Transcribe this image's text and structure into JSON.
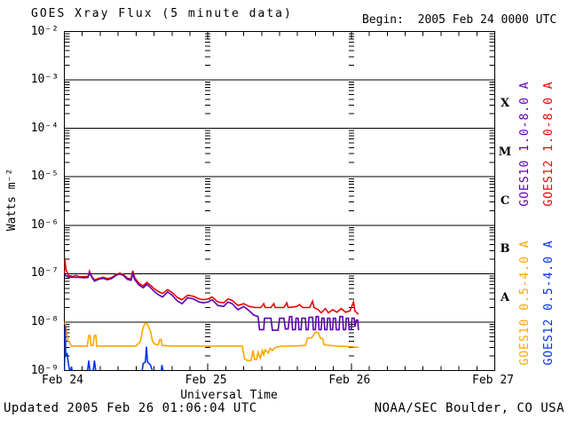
{
  "title": "GOES Xray Flux (5 minute data)",
  "begin_label": "Begin:  2005 Feb 24 0000 UTC",
  "footer": {
    "updated": "Updated 2005 Feb 26 01:06:04 UTC",
    "source": "NOAA/SEC Boulder, CO USA"
  },
  "axes": {
    "ylabel": "Watts m⁻²",
    "xlabel": "Universal Time",
    "y_tick_labels": [
      "10⁻²",
      "10⁻³",
      "10⁻⁴",
      "10⁻⁵",
      "10⁻⁶",
      "10⁻⁷",
      "10⁻⁸",
      "10⁻⁹"
    ],
    "x_tick_labels": [
      "Feb 24",
      "Feb 25",
      "Feb 26",
      "Feb 27"
    ],
    "flux_class_labels": [
      "X",
      "M",
      "C",
      "B",
      "A"
    ]
  },
  "legend": [
    {
      "label": "GOES10 1.0-8.0 A",
      "color": "#5B00B0"
    },
    {
      "label": "GOES12 1.0-8.0 A",
      "color": "#EC0000"
    },
    {
      "label": "GOES10 0.5-4.0 A",
      "color": "#FFA500"
    },
    {
      "label": "GOES12 0.5-4.0 A",
      "color": "#0033EE"
    }
  ],
  "chart_data": {
    "type": "line",
    "title": "GOES Xray Flux (5 minute data)",
    "x_unit": "days since 2005 Feb 24 0000 UTC",
    "y_unit": "Watts m^-2",
    "yscale": "log",
    "xlim": [
      0,
      3
    ],
    "ylim": [
      1e-09,
      0.01
    ],
    "x_major_tick_days": 1,
    "x_minor_tick_days": 0.125,
    "grid": "solid horizontal line per decade; dotted vertical columns at day boundaries",
    "series": [
      {
        "name": "GOES12 1.0-8.0 A",
        "color": "#EC0000",
        "points": [
          [
            0.0,
            1e-07
          ],
          [
            0.003,
            2.1e-07
          ],
          [
            0.012,
            1.2e-07
          ],
          [
            0.03,
            9.2e-08
          ],
          [
            0.06,
            8.8e-08
          ],
          [
            0.08,
            9.2e-08
          ],
          [
            0.11,
            8.6e-08
          ],
          [
            0.14,
            8.7e-08
          ],
          [
            0.165,
            8.8e-08
          ],
          [
            0.175,
            1.13e-07
          ],
          [
            0.19,
            9e-08
          ],
          [
            0.21,
            7.4e-08
          ],
          [
            0.24,
            8e-08
          ],
          [
            0.27,
            8.4e-08
          ],
          [
            0.3,
            7.9e-08
          ],
          [
            0.33,
            8.3e-08
          ],
          [
            0.36,
            9.6e-08
          ],
          [
            0.385,
            1.02e-07
          ],
          [
            0.41,
            9.7e-08
          ],
          [
            0.44,
            8e-08
          ],
          [
            0.465,
            7.8e-08
          ],
          [
            0.477,
            1.15e-07
          ],
          [
            0.49,
            8.3e-08
          ],
          [
            0.52,
            6.3e-08
          ],
          [
            0.55,
            5.6e-08
          ],
          [
            0.575,
            6.6e-08
          ],
          [
            0.6,
            5.8e-08
          ],
          [
            0.63,
            4.8e-08
          ],
          [
            0.66,
            4.2e-08
          ],
          [
            0.685,
            3.9e-08
          ],
          [
            0.72,
            4.7e-08
          ],
          [
            0.75,
            4.1e-08
          ],
          [
            0.79,
            3.2e-08
          ],
          [
            0.82,
            2.9e-08
          ],
          [
            0.86,
            3.6e-08
          ],
          [
            0.9,
            3.4e-08
          ],
          [
            0.94,
            3e-08
          ],
          [
            0.97,
            2.9e-08
          ],
          [
            1.0,
            3e-08
          ],
          [
            1.03,
            3.3e-08
          ],
          [
            1.07,
            2.6e-08
          ],
          [
            1.11,
            2.5e-08
          ],
          [
            1.14,
            3e-08
          ],
          [
            1.17,
            2.8e-08
          ],
          [
            1.21,
            2.2e-08
          ],
          [
            1.25,
            2.4e-08
          ],
          [
            1.29,
            2.1e-08
          ],
          [
            1.33,
            2e-08
          ],
          [
            1.37,
            2e-08
          ],
          [
            1.39,
            2.4e-08
          ],
          [
            1.4,
            2e-08
          ],
          [
            1.44,
            2e-08
          ],
          [
            1.46,
            2.4e-08
          ],
          [
            1.47,
            2e-08
          ],
          [
            1.53,
            2e-08
          ],
          [
            1.55,
            2.5e-08
          ],
          [
            1.56,
            2e-08
          ],
          [
            1.62,
            2.1e-08
          ],
          [
            1.64,
            2.3e-08
          ],
          [
            1.66,
            2e-08
          ],
          [
            1.71,
            2e-08
          ],
          [
            1.73,
            2.7e-08
          ],
          [
            1.74,
            2e-08
          ],
          [
            1.77,
            1.8e-08
          ],
          [
            1.79,
            1.55e-08
          ],
          [
            1.82,
            1.9e-08
          ],
          [
            1.84,
            1.55e-08
          ],
          [
            1.87,
            1.8e-08
          ],
          [
            1.9,
            1.6e-08
          ],
          [
            1.93,
            1.9e-08
          ],
          [
            1.96,
            1.6e-08
          ],
          [
            1.99,
            1.7e-08
          ],
          [
            2.015,
            2.6e-08
          ],
          [
            2.025,
            1.7e-08
          ],
          [
            2.05,
            1.45e-08
          ]
        ]
      },
      {
        "name": "GOES10 1.0-8.0 A",
        "color": "#5B00B0",
        "points": [
          [
            0.0,
            9.6e-08
          ],
          [
            0.03,
            8.5e-08
          ],
          [
            0.06,
            8.4e-08
          ],
          [
            0.1,
            8.4e-08
          ],
          [
            0.14,
            8.2e-08
          ],
          [
            0.165,
            8.4e-08
          ],
          [
            0.175,
            1.05e-07
          ],
          [
            0.19,
            8.6e-08
          ],
          [
            0.21,
            7e-08
          ],
          [
            0.24,
            7.7e-08
          ],
          [
            0.27,
            8e-08
          ],
          [
            0.3,
            7.5e-08
          ],
          [
            0.33,
            7.9e-08
          ],
          [
            0.36,
            9.2e-08
          ],
          [
            0.385,
            9.8e-08
          ],
          [
            0.41,
            9.3e-08
          ],
          [
            0.44,
            7.6e-08
          ],
          [
            0.465,
            7.3e-08
          ],
          [
            0.477,
            1e-07
          ],
          [
            0.49,
            7.6e-08
          ],
          [
            0.52,
            5.8e-08
          ],
          [
            0.55,
            5.1e-08
          ],
          [
            0.575,
            6e-08
          ],
          [
            0.6,
            5.2e-08
          ],
          [
            0.63,
            4.2e-08
          ],
          [
            0.66,
            3.6e-08
          ],
          [
            0.685,
            3.3e-08
          ],
          [
            0.72,
            4.2e-08
          ],
          [
            0.75,
            3.6e-08
          ],
          [
            0.79,
            2.7e-08
          ],
          [
            0.82,
            2.4e-08
          ],
          [
            0.86,
            3.2e-08
          ],
          [
            0.9,
            3e-08
          ],
          [
            0.94,
            2.6e-08
          ],
          [
            0.97,
            2.5e-08
          ],
          [
            1.0,
            2.6e-08
          ],
          [
            1.03,
            2.9e-08
          ],
          [
            1.07,
            2.2e-08
          ],
          [
            1.11,
            2.1e-08
          ],
          [
            1.14,
            2.6e-08
          ],
          [
            1.17,
            2.4e-08
          ],
          [
            1.21,
            1.8e-08
          ],
          [
            1.25,
            2.1e-08
          ],
          [
            1.29,
            1.7e-08
          ],
          [
            1.32,
            1.4e-08
          ],
          [
            1.35,
            1.3e-08
          ],
          [
            1.36,
            7e-09
          ],
          [
            1.39,
            7e-09
          ],
          [
            1.395,
            1.2e-08
          ],
          [
            1.44,
            1.2e-08
          ],
          [
            1.45,
            6.8e-09
          ],
          [
            1.49,
            6.8e-09
          ],
          [
            1.5,
            1.2e-08
          ],
          [
            1.53,
            1.2e-08
          ],
          [
            1.54,
            7.2e-09
          ],
          [
            1.56,
            7.2e-09
          ],
          [
            1.57,
            1.3e-08
          ],
          [
            1.585,
            1.3e-08
          ],
          [
            1.59,
            7e-09
          ],
          [
            1.61,
            7e-09
          ],
          [
            1.615,
            1.2e-08
          ],
          [
            1.63,
            1.2e-08
          ],
          [
            1.635,
            7e-09
          ],
          [
            1.65,
            7e-09
          ],
          [
            1.655,
            1.2e-08
          ],
          [
            1.68,
            1.2e-08
          ],
          [
            1.685,
            7e-09
          ],
          [
            1.7,
            7e-09
          ],
          [
            1.705,
            1.25e-08
          ],
          [
            1.73,
            1.25e-08
          ],
          [
            1.735,
            7e-09
          ],
          [
            1.75,
            7e-09
          ],
          [
            1.755,
            1.3e-08
          ],
          [
            1.77,
            1.3e-08
          ],
          [
            1.775,
            7e-09
          ],
          [
            1.79,
            7e-09
          ],
          [
            1.795,
            1.2e-08
          ],
          [
            1.81,
            1.2e-08
          ],
          [
            1.815,
            7e-09
          ],
          [
            1.83,
            7e-09
          ],
          [
            1.835,
            1.2e-08
          ],
          [
            1.85,
            1.2e-08
          ],
          [
            1.855,
            7e-09
          ],
          [
            1.87,
            7e-09
          ],
          [
            1.875,
            1.2e-08
          ],
          [
            1.89,
            1.2e-08
          ],
          [
            1.895,
            7e-09
          ],
          [
            1.915,
            7e-09
          ],
          [
            1.92,
            1.3e-08
          ],
          [
            1.94,
            1.3e-08
          ],
          [
            1.945,
            7e-09
          ],
          [
            1.96,
            7e-09
          ],
          [
            1.965,
            1.2e-08
          ],
          [
            1.98,
            1.2e-08
          ],
          [
            1.985,
            7e-09
          ],
          [
            2.0,
            7e-09
          ],
          [
            2.005,
            1.2e-08
          ],
          [
            2.02,
            1.2e-08
          ],
          [
            2.025,
            8e-09
          ],
          [
            2.035,
            1.1e-08
          ],
          [
            2.045,
            1.1e-08
          ],
          [
            2.05,
            6.8e-09
          ]
        ]
      },
      {
        "name": "GOES10 0.5-4.0 A",
        "color": "#FFA500",
        "points": [
          [
            0.0,
            1.02e-08
          ],
          [
            0.01,
            8.5e-09
          ],
          [
            0.025,
            4.2e-09
          ],
          [
            0.05,
            3.2e-09
          ],
          [
            0.1,
            3.2e-09
          ],
          [
            0.16,
            3.2e-09
          ],
          [
            0.17,
            5.3e-09
          ],
          [
            0.18,
            5.3e-09
          ],
          [
            0.185,
            3.3e-09
          ],
          [
            0.2,
            3.3e-09
          ],
          [
            0.21,
            5.3e-09
          ],
          [
            0.22,
            5.3e-09
          ],
          [
            0.225,
            3.2e-09
          ],
          [
            0.3,
            3.2e-09
          ],
          [
            0.4,
            3.2e-09
          ],
          [
            0.5,
            3.2e-09
          ],
          [
            0.53,
            4e-09
          ],
          [
            0.55,
            8e-09
          ],
          [
            0.565,
            9.5e-09
          ],
          [
            0.58,
            9e-09
          ],
          [
            0.6,
            6.5e-09
          ],
          [
            0.615,
            4e-09
          ],
          [
            0.63,
            3.5e-09
          ],
          [
            0.655,
            3.4e-09
          ],
          [
            0.665,
            4.4e-09
          ],
          [
            0.675,
            4.4e-09
          ],
          [
            0.68,
            3.3e-09
          ],
          [
            0.75,
            3.2e-09
          ],
          [
            0.85,
            3.2e-09
          ],
          [
            0.95,
            3.2e-09
          ],
          [
            1.05,
            3.2e-09
          ],
          [
            1.15,
            3.2e-09
          ],
          [
            1.24,
            3.2e-09
          ],
          [
            1.255,
            1.75e-09
          ],
          [
            1.28,
            1.6e-09
          ],
          [
            1.3,
            1.6e-09
          ],
          [
            1.315,
            2.6e-09
          ],
          [
            1.325,
            1.7e-09
          ],
          [
            1.34,
            1.7e-09
          ],
          [
            1.35,
            2.4e-09
          ],
          [
            1.365,
            1.8e-09
          ],
          [
            1.38,
            2.6e-09
          ],
          [
            1.39,
            2.1e-09
          ],
          [
            1.4,
            2.7e-09
          ],
          [
            1.42,
            2.3e-09
          ],
          [
            1.435,
            2.9e-09
          ],
          [
            1.45,
            2.6e-09
          ],
          [
            1.47,
            3e-09
          ],
          [
            1.52,
            3.2e-09
          ],
          [
            1.6,
            3.2e-09
          ],
          [
            1.68,
            3.3e-09
          ],
          [
            1.695,
            4.7e-09
          ],
          [
            1.72,
            4.7e-09
          ],
          [
            1.73,
            5e-09
          ],
          [
            1.75,
            6.2e-09
          ],
          [
            1.77,
            6e-09
          ],
          [
            1.785,
            4.6e-09
          ],
          [
            1.8,
            4.6e-09
          ],
          [
            1.81,
            3.4e-09
          ],
          [
            1.9,
            3.2e-09
          ],
          [
            2.0,
            3.1e-09
          ],
          [
            2.05,
            3e-09
          ]
        ]
      },
      {
        "name": "GOES12 0.5-4.0 A",
        "color": "#0033EE",
        "points": [
          [
            0.0,
            9e-10
          ],
          [
            0.002,
            2e-09
          ],
          [
            0.006,
            8.5e-09
          ],
          [
            0.01,
            2e-09
          ],
          [
            0.02,
            2.2e-09
          ],
          [
            0.03,
            1.3e-09
          ],
          [
            0.04,
            9e-10
          ],
          [
            0.05,
            1.2e-09
          ],
          [
            0.055,
            9e-10
          ],
          [
            0.16,
            9e-10
          ],
          [
            0.17,
            1.6e-09
          ],
          [
            0.18,
            9e-10
          ],
          [
            0.2,
            9e-10
          ],
          [
            0.21,
            1.6e-09
          ],
          [
            0.22,
            9e-10
          ],
          [
            0.54,
            9e-10
          ],
          [
            0.55,
            1.4e-09
          ],
          [
            0.565,
            1.5e-09
          ],
          [
            0.572,
            3.1e-09
          ],
          [
            0.58,
            1.5e-09
          ],
          [
            0.6,
            1.3e-09
          ],
          [
            0.62,
            9e-10
          ],
          [
            0.675,
            9e-10
          ],
          [
            0.68,
            1.3e-09
          ],
          [
            0.69,
            9e-10
          ],
          [
            2.05,
            8.5e-10
          ]
        ]
      }
    ]
  }
}
